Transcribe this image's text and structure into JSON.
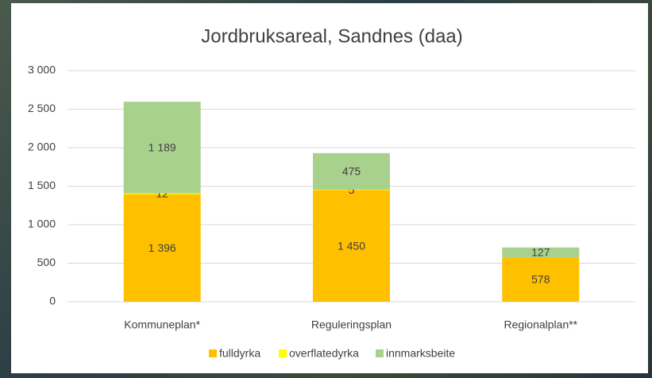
{
  "chart_data": {
    "type": "stacked_bar",
    "title": "Jordbruksareal, Sandnes (daa)",
    "categories": [
      "Kommuneplan*",
      "Reguleringsplan",
      "Regionalplan**"
    ],
    "series": [
      {
        "name": "fulldyrka",
        "color": "#ffc000",
        "values": [
          1396,
          1450,
          578
        ],
        "value_labels": [
          "1 396",
          "1 450",
          "578"
        ]
      },
      {
        "name": "overflatedyrka",
        "color": "#ffff00",
        "values": [
          12,
          5,
          0
        ],
        "value_labels": [
          "12",
          "5",
          null
        ]
      },
      {
        "name": "innmarksbeite",
        "color": "#a9d18e",
        "values": [
          1189,
          475,
          127
        ],
        "value_labels": [
          "1 189",
          "475",
          "127"
        ]
      }
    ],
    "ylim": [
      0,
      3000
    ],
    "yticks": [
      0,
      500,
      {
        "value": 1000,
        "label": "1 000"
      },
      {
        "value": 1500,
        "label": "1 500"
      },
      {
        "value": 2000,
        "label": "2 000"
      },
      {
        "value": 2500,
        "label": "2 500"
      },
      {
        "value": 3000,
        "label": "3 000"
      }
    ],
    "grid": true,
    "legend": "bottom"
  }
}
